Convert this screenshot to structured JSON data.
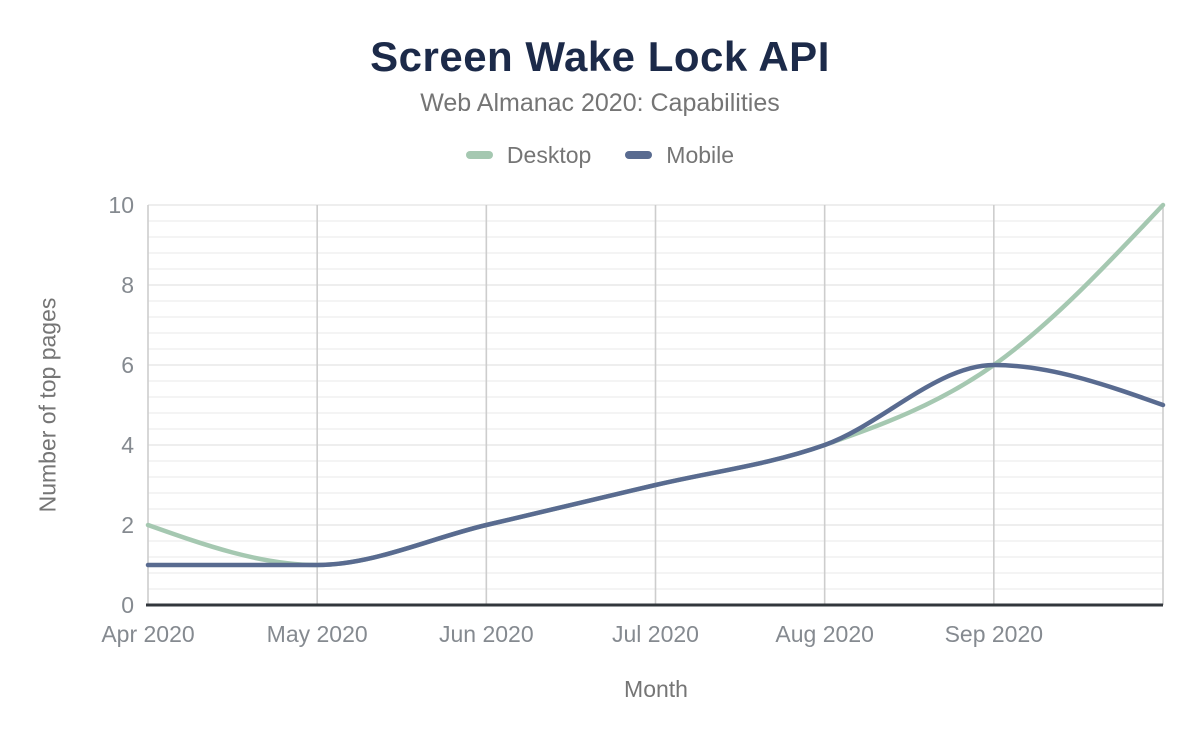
{
  "header": {
    "title": "Screen Wake Lock API",
    "subtitle": "Web Almanac 2020: Capabilities"
  },
  "legend": {
    "items": [
      {
        "label": "Desktop",
        "color": "#a5c8b1"
      },
      {
        "label": "Mobile",
        "color": "#596b90"
      }
    ]
  },
  "axes": {
    "x_title": "Month",
    "y_title": "Number of top pages"
  },
  "chart_data": {
    "type": "line",
    "title": "Screen Wake Lock API",
    "subtitle": "Web Almanac 2020: Capabilities",
    "xlabel": "Month",
    "ylabel": "Number of top pages",
    "ylim": [
      0,
      10
    ],
    "y_ticks": [
      0,
      2,
      4,
      6,
      8,
      10
    ],
    "x_tick_labels": [
      "Apr 2020",
      "May 2020",
      "Jun 2020",
      "Jul 2020",
      "Aug 2020",
      "Sep 2020"
    ],
    "categories": [
      "Apr 2020",
      "May 2020",
      "Jun 2020",
      "Jul 2020",
      "Aug 2020",
      "Sep 2020",
      ""
    ],
    "last_point_unlabeled": true,
    "smooth": true,
    "legend_position": "top",
    "grid": {
      "vertical_gridlines": true,
      "horizontal_minor_per_major": 5
    },
    "series": [
      {
        "name": "Desktop",
        "color": "#a5c8b1",
        "values": [
          2,
          1,
          2,
          3,
          4,
          6,
          10
        ]
      },
      {
        "name": "Mobile",
        "color": "#596b90",
        "values": [
          1,
          1,
          2,
          3,
          4,
          6,
          5
        ]
      }
    ],
    "colors": {
      "title": "#1c2a49",
      "text_muted": "#757575",
      "tick_label": "#858a90",
      "axis": "#32373c",
      "grid_vertical": "#cdcdcd",
      "grid_major": "#e8e8e8",
      "grid_minor": "#f1f1f1",
      "background": "#ffffff"
    }
  }
}
